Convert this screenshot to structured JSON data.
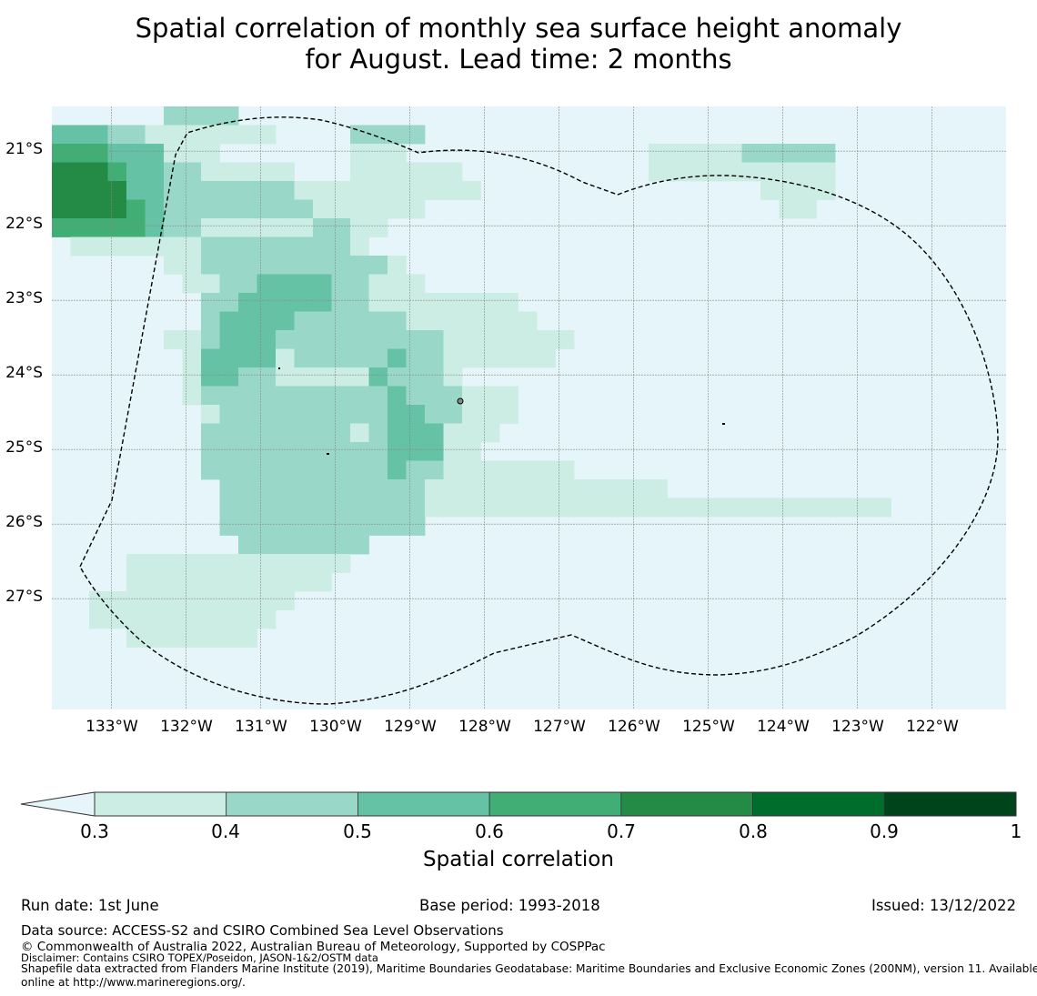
{
  "title_line1": "Spatial correlation of monthly sea surface height anomaly",
  "title_line2": "for August. Lead time: 2 months",
  "map": {
    "lat_labels": [
      "21°S",
      "22°S",
      "23°S",
      "24°S",
      "25°S",
      "26°S",
      "27°S"
    ],
    "lon_labels": [
      "133°W",
      "132°W",
      "131°W",
      "130°W",
      "129°W",
      "128°W",
      "127°W",
      "126°W",
      "125°W",
      "124°W",
      "123°W",
      "122°W"
    ],
    "grid_origin_lon": -133.8,
    "grid_origin_lat": -20.4,
    "cell_deg": 0.25,
    "background_color": "#e5f5f9",
    "boundary_line": "dashed",
    "correlation_grid": [
      "00000022220000000000000000000000000000000000000000",
      "33322111111100002222000000000000000000000000000000",
      "44433311100000001110000000000000111112222200000000",
      "55543322111110001111110000000000111111111100000000",
      "55553322222221111111111000000000000000111100000000",
      "55554322222222111111000000000000000000011000000000",
      "44444322111111221100000000000000000000000000000000",
      "01111111222222221000000000000000000000000000000000",
      "00000011222222222210000000000000000000000000000000",
      "00000001122333322111000000000000000000000000000000",
      "00000000223333322111111110000000000000000000000000",
      "00000000233332222221111111000000000000000000000000",
      "00000011233322222222211111110000000000000000000000",
      "00000001333312222232211111100000000000000000000000",
      "00000001332211111322210000000000000000000000000000",
      "00000001222222222232221110000000000000000000000000",
      "00000000122222222233221110000000000000000000000000",
      "00000000222222221233311100000000000000000000000000",
      "00000000222222222233311000000000000000000000000000",
      "00000000222222222232211111110000000000000000000000",
      "00000000022222222222111111111111100000000000000000",
      "00000000022222222222111111111111111111111111100000",
      "00000000022222222222000000000000000000000000000000",
      "00000000002222222000000000000000000000000000000000",
      "00001111111111110000000000000000000000000000000000",
      "00001111111111100000000000000000000000000000000000",
      "00111111111110000000000000000000000000000000000000",
      "00111111111100000000000000000000000000000000000000",
      "00001111111000000000000000000000000000000000000000",
      "00000000000000000000000000000000000000000000000000",
      "00000000000000000000000000000000000000000000000000",
      "00000000000000000000000000000000000000000000000000",
      "00000000000000000000000000000000000000000000000000"
    ]
  },
  "colorbar": {
    "label": "Spatial correlation",
    "ticks": [
      "0.3",
      "0.4",
      "0.5",
      "0.6",
      "0.7",
      "0.8",
      "0.9",
      "1"
    ],
    "colors": [
      "#ccede4",
      "#99d8c9",
      "#66c2a4",
      "#41ae76",
      "#238b45",
      "#006d2c",
      "#00441b"
    ],
    "under_color": "#e5f5f9"
  },
  "footer": {
    "run_date": "Run date: 1st June",
    "base_period": "Base period: 1993-2018",
    "issued": "Issued: 13/12/2022",
    "data_source": "Data source: ACCESS-S2 and CSIRO Combined Sea Level Observations",
    "copyright": "© Commonwealth of Australia 2022, Australian Bureau of Meteorology, Supported by COSPPac",
    "disclaimer": "Disclaimer: Contains CSIRO TOPEX/Poseidon, JASON-1&2/OSTM data",
    "shapefile_line1": "Shapefile data extracted from Flanders Marine Institute (2019), Maritime Boundaries Geodatabase: Maritime Boundaries and Exclusive Economic Zones (200NM), version 11. Available",
    "shapefile_line2": "online at http://www.marineregions.org/."
  }
}
